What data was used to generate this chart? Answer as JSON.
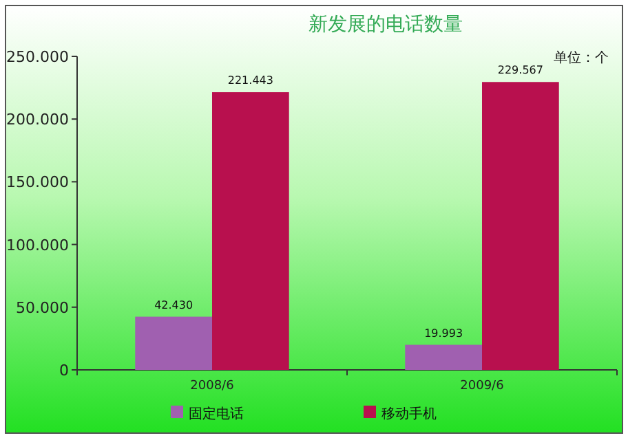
{
  "chart_data": {
    "type": "bar",
    "title": "新发展的电话数量",
    "annotations": [
      "单位：个"
    ],
    "categories": [
      "2008/6",
      "2009/6"
    ],
    "series": [
      {
        "name": "固定电话",
        "color": "#a060b0",
        "values": [
          42430,
          19993
        ],
        "value_labels": [
          "42.430",
          "19.993"
        ]
      },
      {
        "name": "移动手机",
        "color": "#b8104e",
        "values": [
          221443,
          229567
        ],
        "value_labels": [
          "221.443",
          "229.567"
        ]
      }
    ],
    "ylim": [
      0,
      250000
    ],
    "yticks": [
      0,
      {
        "value": 50000,
        "label": "50.000"
      },
      {
        "value": 100000,
        "label": "100.000"
      },
      {
        "value": 150000,
        "label": "150.000"
      },
      {
        "value": 200000,
        "label": "200.000"
      },
      {
        "value": 250000,
        "label": "250.000"
      }
    ],
    "grid": false,
    "legend": "bottom"
  }
}
